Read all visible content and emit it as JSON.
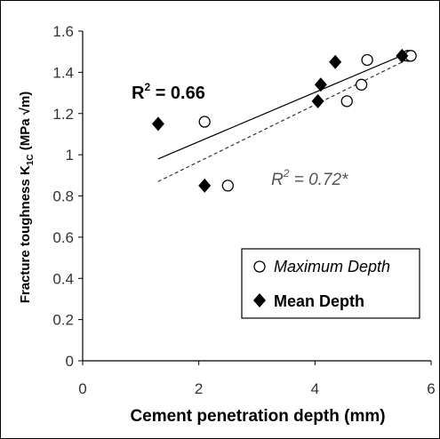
{
  "chart_data": {
    "type": "scatter",
    "xlabel": "Cement penetration depth (mm)",
    "ylabel_main": "Fracture toughness K",
    "ylabel_sub": "1C",
    "ylabel_unit": "(MPa √m)",
    "xlim": [
      0,
      6
    ],
    "ylim": [
      0,
      1.6
    ],
    "x_ticks": [
      0,
      2,
      4,
      6
    ],
    "x_tick_labels": [
      "0",
      "2",
      "4",
      "6"
    ],
    "y_ticks": [
      0,
      0.2,
      0.4,
      0.6,
      0.8,
      1.0,
      1.2,
      1.4,
      1.6
    ],
    "y_tick_labels": [
      "0",
      "0.2",
      "0.4",
      "0.6",
      "0.8",
      "1",
      "1.2",
      "1.4",
      "1.6"
    ],
    "grid": false,
    "legend_placement": "bottom-right",
    "series": [
      {
        "name": "Maximum Depth",
        "marker": "open-circle",
        "points": [
          [
            2.1,
            1.16
          ],
          [
            2.5,
            0.85
          ],
          [
            4.55,
            1.26
          ],
          [
            4.8,
            1.34
          ],
          [
            4.9,
            1.46
          ],
          [
            5.6,
            1.48
          ],
          [
            5.65,
            1.48
          ]
        ],
        "fit": {
          "style": "dashed",
          "x0": 1.3,
          "y0": 0.87,
          "x1": 5.65,
          "y1": 1.47
        },
        "annotation": {
          "r2_prefix": "R",
          "r2_exp": "2",
          "r2_value": " = 0.72*"
        }
      },
      {
        "name": "Mean Depth",
        "marker": "filled-diamond",
        "points": [
          [
            1.3,
            1.15
          ],
          [
            2.1,
            0.85
          ],
          [
            4.05,
            1.26
          ],
          [
            4.1,
            1.34
          ],
          [
            4.35,
            1.45
          ],
          [
            5.5,
            1.48
          ]
        ],
        "fit": {
          "style": "solid",
          "x0": 1.3,
          "y0": 0.98,
          "x1": 5.65,
          "y1": 1.5
        },
        "annotation": {
          "r2_prefix": "R",
          "r2_exp": "2",
          "r2_value": " = 0.66"
        }
      }
    ]
  }
}
